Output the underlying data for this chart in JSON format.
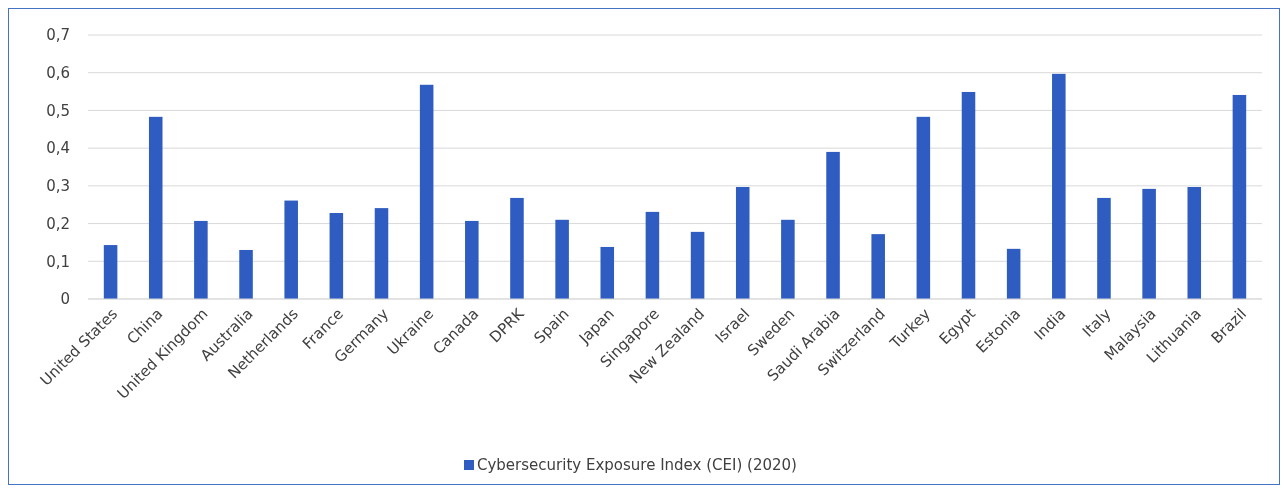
{
  "chart_data": {
    "type": "bar",
    "categories": [
      "United States",
      "China",
      "United Kingdom",
      "Australia",
      "Netherlands",
      "France",
      "Germany",
      "Ukraine",
      "Canada",
      "DPRK",
      "Spain",
      "Japan",
      "Singapore",
      "New Zealand",
      "Israel",
      "Sweden",
      "Saudi Arabia",
      "Switzerland",
      "Turkey",
      "Egypt",
      "Estonia",
      "India",
      "Italy",
      "Malaysia",
      "Lithuania",
      "Brazil"
    ],
    "series": [
      {
        "name": "Cybersecurity Exposure Index (CEI) (2020)",
        "color": "#2f5cc0",
        "values": [
          0.143,
          0.483,
          0.207,
          0.13,
          0.261,
          0.228,
          0.241,
          0.568,
          0.207,
          0.268,
          0.21,
          0.138,
          0.231,
          0.178,
          0.297,
          0.21,
          0.39,
          0.172,
          0.483,
          0.549,
          0.133,
          0.597,
          0.268,
          0.292,
          0.297,
          0.541
        ]
      }
    ],
    "ylim": [
      0,
      0.7
    ],
    "yticks": [
      {
        "value": 0,
        "label": "0"
      },
      {
        "value": 0.1,
        "label": "0,1"
      },
      {
        "value": 0.2,
        "label": "0,2"
      },
      {
        "value": 0.3,
        "label": "0,3"
      },
      {
        "value": 0.4,
        "label": "0,4"
      },
      {
        "value": 0.5,
        "label": "0,5"
      },
      {
        "value": 0.6,
        "label": "0,6"
      },
      {
        "value": 0.7,
        "label": "0,7"
      }
    ],
    "grid": "y",
    "legend": "bottom"
  }
}
